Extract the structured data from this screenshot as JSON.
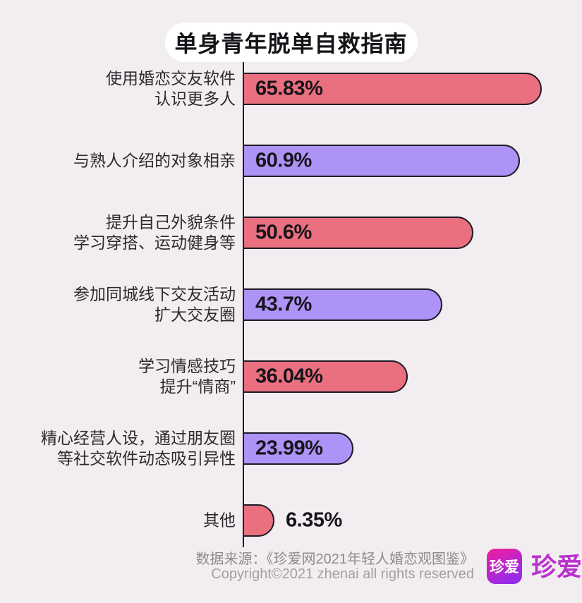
{
  "title": "单身青年脱单自救指南",
  "chart_data": {
    "type": "bar",
    "orientation": "horizontal",
    "title": "单身青年脱单自救指南",
    "xlim": [
      0,
      70
    ],
    "grid": false,
    "legend": "none",
    "categories": [
      "使用婚恋交友软件认识更多人",
      "与熟人介绍的对象相亲",
      "提升自己外貌条件学习穿搭、运动健身等",
      "参加同城线下交友活动扩大交友圈",
      "学习情感技巧提升“情商”",
      "精心经营人设，通过朋友圈等社交软件动态吸引异性",
      "其他"
    ],
    "values": [
      65.83,
      60.9,
      50.6,
      43.7,
      36.04,
      23.99,
      6.35
    ],
    "series": [
      {
        "label_lines": [
          "使用婚恋交友软件",
          "认识更多人"
        ],
        "value": 65.83,
        "value_label": "65.83%",
        "color": "#ea7080"
      },
      {
        "label_lines": [
          "与熟人介绍的对象相亲"
        ],
        "value": 60.9,
        "value_label": "60.9%",
        "color": "#ae93f7"
      },
      {
        "label_lines": [
          "提升自己外貌条件",
          "学习穿搭、运动健身等"
        ],
        "value": 50.6,
        "value_label": "50.6%",
        "color": "#ea7080"
      },
      {
        "label_lines": [
          "参加同城线下交友活动",
          "扩大交友圈"
        ],
        "value": 43.7,
        "value_label": "43.7%",
        "color": "#ae93f7"
      },
      {
        "label_lines": [
          "学习情感技巧",
          "提升“情商”"
        ],
        "value": 36.04,
        "value_label": "36.04%",
        "color": "#ea7080"
      },
      {
        "label_lines": [
          "精心经营人设，通过朋友圈",
          "等社交软件动态吸引异性"
        ],
        "value": 23.99,
        "value_label": "23.99%",
        "color": "#ae93f7"
      },
      {
        "label_lines": [
          "其他"
        ],
        "value": 6.35,
        "value_label": "6.35%",
        "color": "#ea7080"
      }
    ]
  },
  "colors": {
    "background": "#f2edf0",
    "bar_red": "#ea7080",
    "bar_purple": "#ae93f7",
    "bar_border": "#1c1b26",
    "title_text": "#151318",
    "label_text": "#2d2a2e",
    "footer_text": "#8d898c",
    "brand_magenta": "#ee1ea0",
    "brand_purple": "#8f2bf0"
  },
  "footer": {
    "source": "数据来源：《珍爱网2021年轻人婚恋观图鉴》",
    "copyright": "Copyright©2021  zhenai  all rights reserved",
    "logo_text": "珍爱",
    "brand_name": "珍爱"
  }
}
